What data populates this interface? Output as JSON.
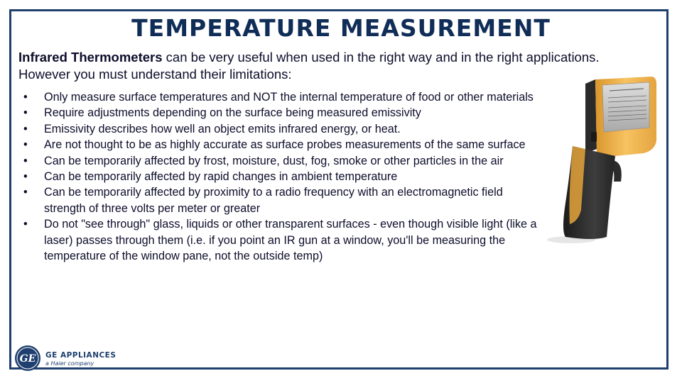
{
  "slide": {
    "title": "TEMPERATURE MEASUREMENT",
    "intro_bold": "Infrared Thermometers",
    "intro_rest": " can be very useful when used in the right way and in the right applications. However you must understand  their limitations:",
    "bullet_symbol": "•",
    "bullets": [
      "Only measure surface temperatures and NOT the internal temperature of food or other materials",
      "Require adjustments depending on the surface being measured emissivity",
      "Emissivity describes how well an object emits infrared energy, or heat.",
      "Are not thought to be as highly accurate as surface probes measurements of the same surface",
      "Can be temporarily affected by frost, moisture, dust, fog, smoke or other particles in the air",
      "Can be temporarily affected by rapid changes in ambient temperature",
      "Can be temporarily affected by proximity to a radio frequency with an electromagnetic field strength of three volts per meter or greater",
      "Do not \"see through\" glass, liquids or other transparent surfaces - even though visible light (like a laser) passes through them (i.e. if you point an IR gun at a window, you'll be measuring the temperature of the window pane, not the outside temp)"
    ]
  },
  "image": {
    "icon": "infrared-thermometer-image"
  },
  "footer": {
    "logo_text": "GE",
    "brand_name": "GE APPLIANCES",
    "brand_sub": "a Haier company"
  },
  "colors": {
    "title": "#0f2d57",
    "frame": "#1f3f6e",
    "thermometer_body": "#f2b347",
    "thermometer_grip": "#2b2b2b"
  }
}
